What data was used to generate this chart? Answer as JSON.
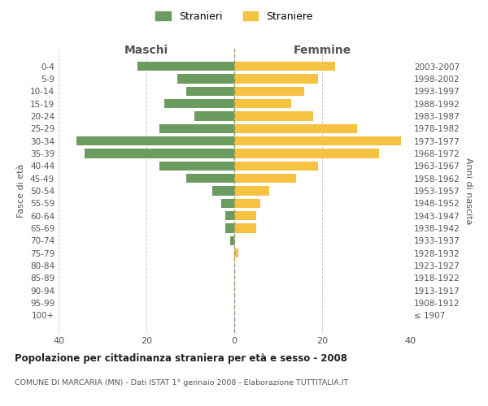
{
  "age_groups": [
    "0-4",
    "5-9",
    "10-14",
    "15-19",
    "20-24",
    "25-29",
    "30-34",
    "35-39",
    "40-44",
    "45-49",
    "50-54",
    "55-59",
    "60-64",
    "65-69",
    "70-74",
    "75-79",
    "80-84",
    "85-89",
    "90-94",
    "95-99",
    "100+"
  ],
  "birth_years": [
    "2003-2007",
    "1998-2002",
    "1993-1997",
    "1988-1992",
    "1983-1987",
    "1978-1982",
    "1973-1977",
    "1968-1972",
    "1963-1967",
    "1958-1962",
    "1953-1957",
    "1948-1952",
    "1943-1947",
    "1938-1942",
    "1933-1937",
    "1928-1932",
    "1923-1927",
    "1918-1922",
    "1913-1917",
    "1908-1912",
    "≤ 1907"
  ],
  "maschi": [
    22,
    13,
    11,
    16,
    9,
    17,
    36,
    34,
    17,
    11,
    5,
    3,
    2,
    2,
    1,
    0,
    0,
    0,
    0,
    0,
    0
  ],
  "femmine": [
    23,
    19,
    16,
    13,
    18,
    28,
    38,
    33,
    19,
    14,
    8,
    6,
    5,
    5,
    0,
    1,
    0,
    0,
    0,
    0,
    0
  ],
  "maschi_color": "#6b9b5e",
  "femmine_color": "#f5c242",
  "center_line_color": "#999966",
  "grid_color": "#cccccc",
  "background_color": "#ffffff",
  "title": "Popolazione per cittadinanza straniera per età e sesso - 2008",
  "subtitle": "COMUNE DI MARCARIA (MN) - Dati ISTAT 1° gennaio 2008 - Elaborazione TUTTITALIA.IT",
  "xlabel_left": "Maschi",
  "xlabel_right": "Femmine",
  "ylabel_left": "Fasce di età",
  "ylabel_right": "Anni di nascita",
  "legend_maschi": "Stranieri",
  "legend_femmine": "Straniere",
  "xlim": [
    -40,
    40
  ],
  "xticks": [
    -40,
    -20,
    0,
    20,
    40
  ],
  "xticklabels": [
    "40",
    "20",
    "0",
    "20",
    "40"
  ]
}
